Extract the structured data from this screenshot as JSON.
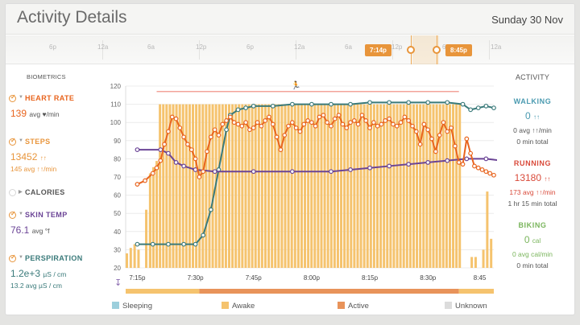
{
  "header": {
    "title": "Activity Details",
    "date": "Sunday 30 Nov"
  },
  "timeline": {
    "ticks": [
      "6p",
      "12a",
      "6a",
      "12p",
      "6p",
      "12a",
      "6a",
      "12p",
      "6p",
      "12a"
    ],
    "start_label": "7:14p",
    "end_label": "8:45p"
  },
  "biometrics": {
    "heading": "BIOMETRICS",
    "heart_rate": {
      "label": "HEART RATE",
      "value": "139",
      "unit": "avg ♥/min"
    },
    "steps": {
      "label": "STEPS",
      "value": "13452",
      "value_unit": "↑↑",
      "sub": "145 avg ↑↑/min"
    },
    "calories": {
      "label": "CALORIES"
    },
    "skin_temp": {
      "label": "SKIN TEMP",
      "value": "76.1",
      "unit": "avg °f"
    },
    "perspiration": {
      "label": "PERSPIRATION",
      "value": "1.2e+3",
      "value_unit": "µS / cm",
      "sub": "13.2 avg µS / cm"
    }
  },
  "activity": {
    "heading": "ACTIVITY",
    "walking": {
      "label": "WALKING",
      "value": "0",
      "value_unit": "↑↑",
      "avg": "0 avg ↑↑/min",
      "total": "0 min total"
    },
    "running": {
      "label": "RUNNING",
      "value": "13180",
      "value_unit": "↑↑",
      "avg": "173 avg ↑↑/min",
      "total": "1 hr 15 min total"
    },
    "biking": {
      "label": "BIKING",
      "value": "0",
      "value_unit": "cal",
      "avg": "0 avg cal/min",
      "total": "0 min total"
    }
  },
  "legend": [
    {
      "label": "Sleeping",
      "color": "#9ccfdc"
    },
    {
      "label": "Awake",
      "color": "#f5c36e"
    },
    {
      "label": "Active",
      "color": "#e8935a"
    },
    {
      "label": "Unknown",
      "color": "#dcdcdc"
    }
  ],
  "colors": {
    "accent": "#e8953b",
    "heart": "#e8641e",
    "skin": "#6b4496",
    "perspiration": "#3a7a7a",
    "running": "#d94a3a",
    "walking": "#4a9ab0",
    "biking": "#7ab55c"
  },
  "chart_data": {
    "type": "line",
    "x_ticks": [
      "7:15p",
      "7:30p",
      "7:45p",
      "8:00p",
      "8:15p",
      "8:30p",
      "8:45"
    ],
    "x_minutes_ticks": [
      0,
      15,
      30,
      45,
      60,
      75,
      90
    ],
    "y_ticks": [
      20,
      30,
      40,
      50,
      60,
      70,
      80,
      90,
      100,
      110,
      120
    ],
    "ylim": [
      20,
      120
    ],
    "series": [
      {
        "key": "perspiration",
        "color": "#3a7a7a",
        "points": [
          [
            0,
            33
          ],
          [
            4,
            33
          ],
          [
            8,
            33
          ],
          [
            12,
            33
          ],
          [
            15,
            33
          ],
          [
            17,
            38
          ],
          [
            19,
            52
          ],
          [
            21,
            74
          ],
          [
            23,
            96
          ],
          [
            24,
            104
          ],
          [
            26,
            107
          ],
          [
            28,
            108
          ],
          [
            30,
            109
          ],
          [
            35,
            109
          ],
          [
            40,
            110
          ],
          [
            45,
            110
          ],
          [
            50,
            110
          ],
          [
            55,
            110
          ],
          [
            60,
            111
          ],
          [
            65,
            111
          ],
          [
            70,
            111
          ],
          [
            75,
            111
          ],
          [
            80,
            111
          ],
          [
            84,
            110
          ],
          [
            86,
            107
          ],
          [
            88,
            108
          ],
          [
            90,
            109
          ],
          [
            92,
            108
          ]
        ]
      },
      {
        "key": "skin_temp",
        "color": "#6b4496",
        "points": [
          [
            0,
            85
          ],
          [
            6,
            85
          ],
          [
            8,
            83
          ],
          [
            10,
            78
          ],
          [
            12,
            76
          ],
          [
            15,
            74
          ],
          [
            20,
            73
          ],
          [
            30,
            73
          ],
          [
            40,
            73
          ],
          [
            50,
            73
          ],
          [
            55,
            74
          ],
          [
            60,
            75
          ],
          [
            65,
            76
          ],
          [
            70,
            77
          ],
          [
            75,
            78
          ],
          [
            80,
            79
          ],
          [
            85,
            80
          ],
          [
            90,
            80
          ],
          [
            94,
            79
          ]
        ]
      },
      {
        "key": "heart_rate",
        "color": "#e8641e",
        "points": [
          [
            0,
            66
          ],
          [
            2,
            68
          ],
          [
            4,
            72
          ],
          [
            5,
            75
          ],
          [
            6,
            79
          ],
          [
            7,
            88
          ],
          [
            8,
            95
          ],
          [
            9,
            103
          ],
          [
            10,
            102
          ],
          [
            11,
            97
          ],
          [
            12,
            92
          ],
          [
            13,
            88
          ],
          [
            14,
            85
          ],
          [
            15,
            80
          ],
          [
            16,
            70
          ],
          [
            17,
            73
          ],
          [
            18,
            84
          ],
          [
            19,
            92
          ],
          [
            20,
            96
          ],
          [
            21,
            93
          ],
          [
            22,
            99
          ],
          [
            23,
            101
          ],
          [
            24,
            103
          ],
          [
            25,
            100
          ],
          [
            26,
            99
          ],
          [
            27,
            98
          ],
          [
            28,
            100
          ],
          [
            29,
            96
          ],
          [
            30,
            97
          ],
          [
            31,
            100
          ],
          [
            32,
            98
          ],
          [
            33,
            101
          ],
          [
            34,
            103
          ],
          [
            35,
            99
          ],
          [
            36,
            92
          ],
          [
            37,
            85
          ],
          [
            38,
            93
          ],
          [
            39,
            98
          ],
          [
            40,
            100
          ],
          [
            41,
            97
          ],
          [
            42,
            95
          ],
          [
            43,
            99
          ],
          [
            44,
            101
          ],
          [
            45,
            100
          ],
          [
            46,
            98
          ],
          [
            47,
            103
          ],
          [
            48,
            104
          ],
          [
            49,
            100
          ],
          [
            50,
            98
          ],
          [
            51,
            102
          ],
          [
            52,
            104
          ],
          [
            53,
            99
          ],
          [
            54,
            97
          ],
          [
            55,
            100
          ],
          [
            56,
            101
          ],
          [
            57,
            99
          ],
          [
            58,
            104
          ],
          [
            59,
            101
          ],
          [
            60,
            97
          ],
          [
            61,
            100
          ],
          [
            62,
            98
          ],
          [
            63,
            99
          ],
          [
            64,
            101
          ],
          [
            65,
            102
          ],
          [
            66,
            99
          ],
          [
            67,
            98
          ],
          [
            68,
            100
          ],
          [
            69,
            103
          ],
          [
            70,
            101
          ],
          [
            71,
            98
          ],
          [
            72,
            95
          ],
          [
            73,
            88
          ],
          [
            74,
            99
          ],
          [
            75,
            96
          ],
          [
            76,
            91
          ],
          [
            77,
            84
          ],
          [
            78,
            93
          ],
          [
            79,
            100
          ],
          [
            80,
            95
          ],
          [
            81,
            97
          ],
          [
            82,
            87
          ],
          [
            83,
            78
          ],
          [
            84,
            77
          ],
          [
            85,
            91
          ],
          [
            86,
            83
          ],
          [
            87,
            76
          ],
          [
            88,
            75
          ],
          [
            89,
            74
          ],
          [
            90,
            73
          ],
          [
            91,
            72
          ],
          [
            92,
            71
          ]
        ]
      }
    ],
    "timeline_bar": {
      "sleep_until_minutes": 16,
      "active_until_minutes": 83
    }
  }
}
